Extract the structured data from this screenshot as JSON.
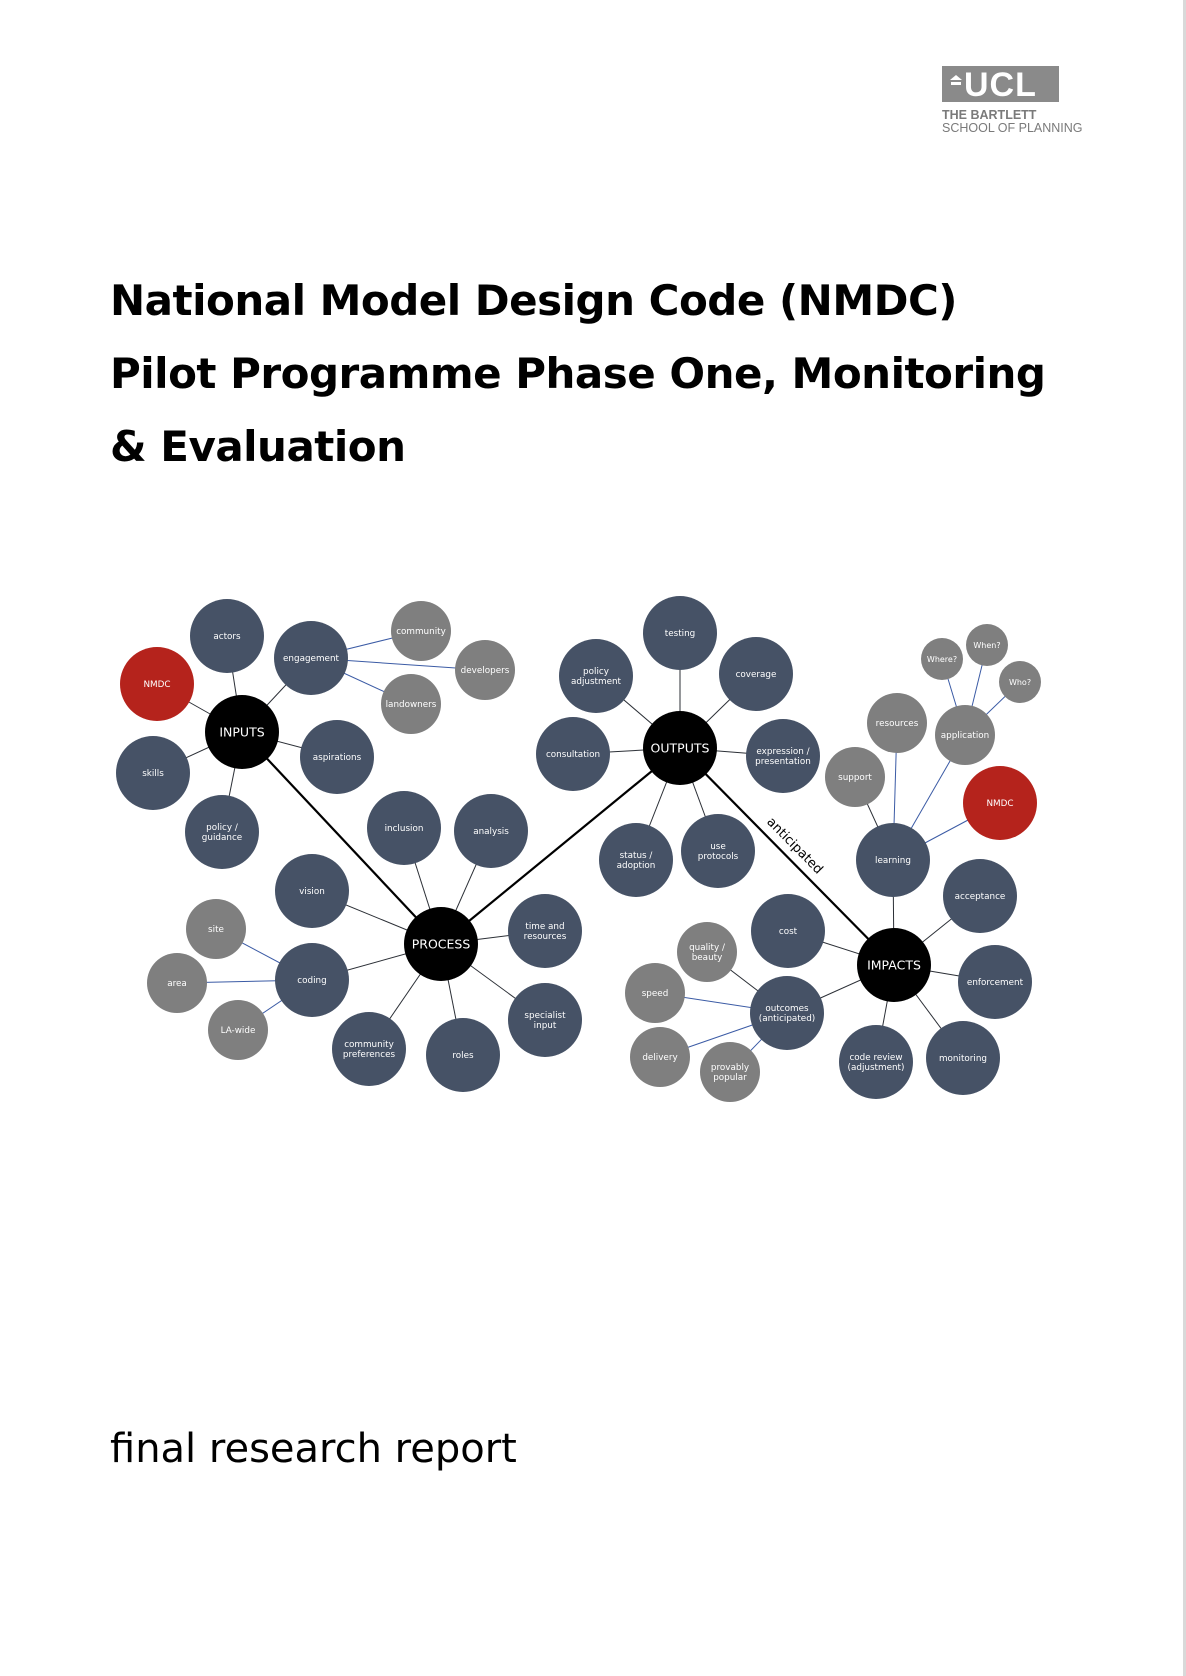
{
  "logo": {
    "wordmark": "UCL",
    "line1": "THE BARTLETT",
    "line2": "SCHOOL OF PLANNING"
  },
  "title": "National Model Design Code (NMDC) Pilot Programme Phase One, Monitoring & Evaluation",
  "subtitle": "final research report",
  "diagram": {
    "hub_link_label": "anticipated",
    "colors": {
      "hub": "#000000",
      "primary": "#465266",
      "secondary": "#7f7f7f",
      "highlight": "#b5231c",
      "hub_link": "#000000",
      "leaf_link": "#3b5ba5"
    },
    "hubs": [
      {
        "id": "inputs",
        "label": [
          "INPUTS"
        ]
      },
      {
        "id": "process",
        "label": [
          "PROCESS"
        ]
      },
      {
        "id": "outputs",
        "label": [
          "OUTPUTS"
        ]
      },
      {
        "id": "impacts",
        "label": [
          "IMPACTS"
        ]
      }
    ],
    "nodes": [
      {
        "id": "actors",
        "label": [
          "actors"
        ],
        "kind": "primary"
      },
      {
        "id": "engagement",
        "label": [
          "engagement"
        ],
        "kind": "primary"
      },
      {
        "id": "community",
        "label": [
          "community"
        ],
        "kind": "secondary"
      },
      {
        "id": "developers",
        "label": [
          "developers"
        ],
        "kind": "secondary"
      },
      {
        "id": "landowners",
        "label": [
          "landowners"
        ],
        "kind": "secondary"
      },
      {
        "id": "nmdc-left",
        "label": [
          "NMDC"
        ],
        "kind": "highlight"
      },
      {
        "id": "skills",
        "label": [
          "skills"
        ],
        "kind": "primary"
      },
      {
        "id": "aspirations",
        "label": [
          "aspirations"
        ],
        "kind": "primary"
      },
      {
        "id": "policy-guidance",
        "label": [
          "policy /",
          "guidance"
        ],
        "kind": "primary"
      },
      {
        "id": "inclusion",
        "label": [
          "inclusion"
        ],
        "kind": "primary"
      },
      {
        "id": "analysis",
        "label": [
          "analysis"
        ],
        "kind": "primary"
      },
      {
        "id": "vision",
        "label": [
          "vision"
        ],
        "kind": "primary"
      },
      {
        "id": "site",
        "label": [
          "site"
        ],
        "kind": "secondary"
      },
      {
        "id": "area",
        "label": [
          "area"
        ],
        "kind": "secondary"
      },
      {
        "id": "coding",
        "label": [
          "coding"
        ],
        "kind": "primary"
      },
      {
        "id": "la-wide",
        "label": [
          "LA-wide"
        ],
        "kind": "secondary"
      },
      {
        "id": "community-preferences",
        "label": [
          "community",
          "preferences"
        ],
        "kind": "primary"
      },
      {
        "id": "roles",
        "label": [
          "roles"
        ],
        "kind": "primary"
      },
      {
        "id": "specialist-input",
        "label": [
          "specialist",
          "input"
        ],
        "kind": "primary"
      },
      {
        "id": "time-resources",
        "label": [
          "time and",
          "resources"
        ],
        "kind": "primary"
      },
      {
        "id": "testing",
        "label": [
          "testing"
        ],
        "kind": "primary"
      },
      {
        "id": "policy-adjustment",
        "label": [
          "policy",
          "adjustment"
        ],
        "kind": "primary"
      },
      {
        "id": "coverage",
        "label": [
          "coverage"
        ],
        "kind": "primary"
      },
      {
        "id": "consultation",
        "label": [
          "consultation"
        ],
        "kind": "primary"
      },
      {
        "id": "expression",
        "label": [
          "expression /",
          "presentation"
        ],
        "kind": "primary"
      },
      {
        "id": "status-adoption",
        "label": [
          "status /",
          "adoption"
        ],
        "kind": "primary"
      },
      {
        "id": "use-protocols",
        "label": [
          "use",
          "protocols"
        ],
        "kind": "primary"
      },
      {
        "id": "where",
        "label": [
          "Where?"
        ],
        "kind": "secondary"
      },
      {
        "id": "when",
        "label": [
          "When?"
        ],
        "kind": "secondary"
      },
      {
        "id": "who",
        "label": [
          "Who?"
        ],
        "kind": "secondary"
      },
      {
        "id": "resources",
        "label": [
          "resources"
        ],
        "kind": "secondary"
      },
      {
        "id": "application",
        "label": [
          "application"
        ],
        "kind": "secondary"
      },
      {
        "id": "support",
        "label": [
          "support"
        ],
        "kind": "secondary"
      },
      {
        "id": "nmdc-right",
        "label": [
          "NMDC"
        ],
        "kind": "highlight"
      },
      {
        "id": "learning",
        "label": [
          "learning"
        ],
        "kind": "primary"
      },
      {
        "id": "acceptance",
        "label": [
          "acceptance"
        ],
        "kind": "primary"
      },
      {
        "id": "enforcement",
        "label": [
          "enforcement"
        ],
        "kind": "primary"
      },
      {
        "id": "monitoring",
        "label": [
          "monitoring"
        ],
        "kind": "primary"
      },
      {
        "id": "code-review",
        "label": [
          "code review",
          "(adjustment)"
        ],
        "kind": "primary"
      },
      {
        "id": "cost",
        "label": [
          "cost"
        ],
        "kind": "primary"
      },
      {
        "id": "outcomes",
        "label": [
          "outcomes",
          "(anticipated)"
        ],
        "kind": "primary"
      },
      {
        "id": "quality-beauty",
        "label": [
          "quality /",
          "beauty"
        ],
        "kind": "secondary"
      },
      {
        "id": "speed",
        "label": [
          "speed"
        ],
        "kind": "secondary"
      },
      {
        "id": "delivery",
        "label": [
          "delivery"
        ],
        "kind": "secondary"
      },
      {
        "id": "provably-popular",
        "label": [
          "provably",
          "popular"
        ],
        "kind": "secondary"
      }
    ],
    "hub_links": [
      [
        "inputs",
        "process"
      ],
      [
        "process",
        "outputs"
      ],
      [
        "outputs",
        "impacts"
      ]
    ],
    "dark_links": [
      [
        "inputs",
        "actors"
      ],
      [
        "inputs",
        "engagement"
      ],
      [
        "inputs",
        "nmdc-left"
      ],
      [
        "inputs",
        "skills"
      ],
      [
        "inputs",
        "aspirations"
      ],
      [
        "inputs",
        "policy-guidance"
      ],
      [
        "process",
        "inclusion"
      ],
      [
        "process",
        "analysis"
      ],
      [
        "process",
        "vision"
      ],
      [
        "process",
        "coding"
      ],
      [
        "process",
        "community-preferences"
      ],
      [
        "process",
        "roles"
      ],
      [
        "process",
        "specialist-input"
      ],
      [
        "process",
        "time-resources"
      ],
      [
        "outputs",
        "testing"
      ],
      [
        "outputs",
        "policy-adjustment"
      ],
      [
        "outputs",
        "coverage"
      ],
      [
        "outputs",
        "consultation"
      ],
      [
        "outputs",
        "expression"
      ],
      [
        "outputs",
        "status-adoption"
      ],
      [
        "outputs",
        "use-protocols"
      ],
      [
        "impacts",
        "learning"
      ],
      [
        "impacts",
        "acceptance"
      ],
      [
        "impacts",
        "enforcement"
      ],
      [
        "impacts",
        "monitoring"
      ],
      [
        "impacts",
        "code-review"
      ],
      [
        "impacts",
        "cost"
      ],
      [
        "impacts",
        "outcomes"
      ],
      [
        "learning",
        "support"
      ],
      [
        "outcomes",
        "quality-beauty"
      ]
    ],
    "blue_links": [
      [
        "engagement",
        "community"
      ],
      [
        "engagement",
        "developers"
      ],
      [
        "engagement",
        "landowners"
      ],
      [
        "coding",
        "site"
      ],
      [
        "coding",
        "area"
      ],
      [
        "coding",
        "la-wide"
      ],
      [
        "learning",
        "resources"
      ],
      [
        "learning",
        "application"
      ],
      [
        "learning",
        "nmdc-right"
      ],
      [
        "application",
        "where"
      ],
      [
        "application",
        "when"
      ],
      [
        "application",
        "who"
      ],
      [
        "outcomes",
        "speed"
      ],
      [
        "outcomes",
        "delivery"
      ],
      [
        "outcomes",
        "provably-popular"
      ]
    ]
  }
}
